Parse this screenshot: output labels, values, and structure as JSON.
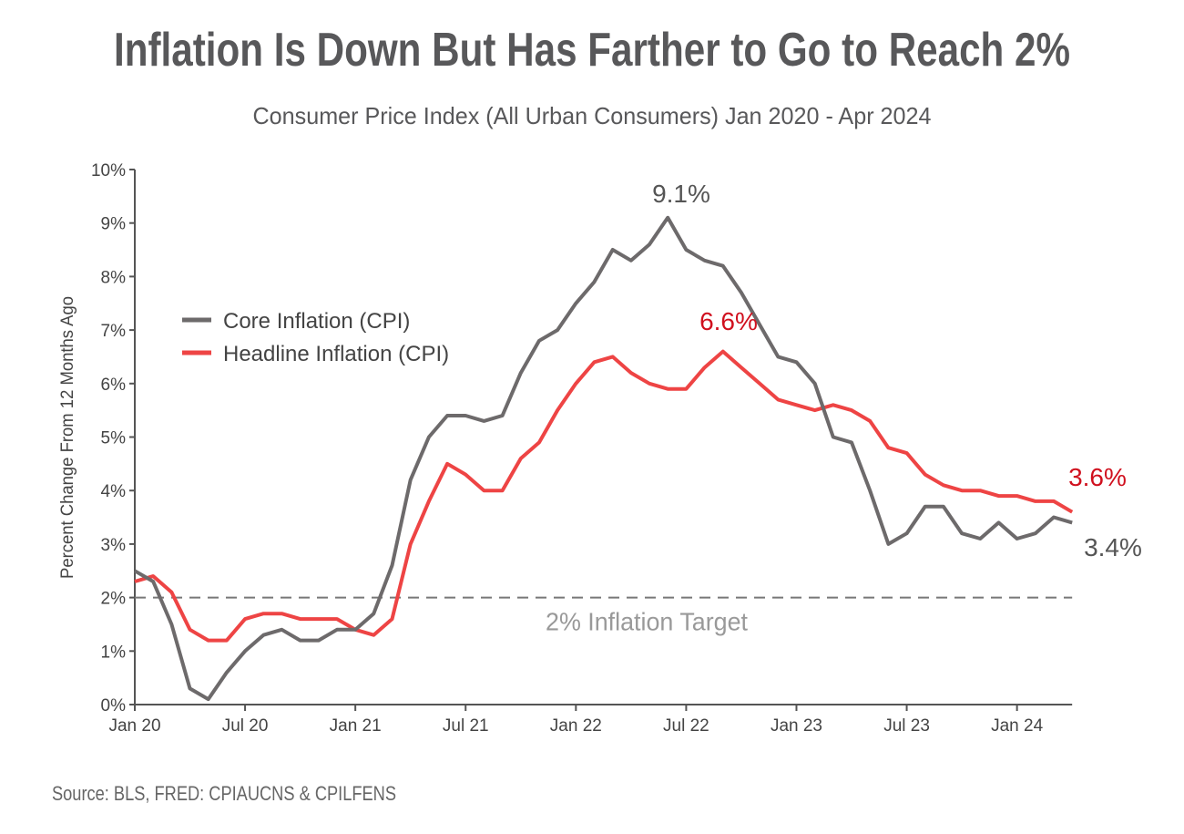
{
  "chart_data": {
    "type": "line",
    "title": "Inflation Is Down But Has Farther to Go to Reach 2%",
    "subtitle": "Consumer Price Index (All Urban Consumers) Jan 2020 - Apr 2024",
    "ylabel": "Percent Change From 12 Months Ago",
    "xlabel": "",
    "ylim": [
      0,
      10
    ],
    "yticks": [
      "0%",
      "1%",
      "2%",
      "3%",
      "4%",
      "5%",
      "6%",
      "7%",
      "8%",
      "9%",
      "10%"
    ],
    "xticks": [
      "Jan 20",
      "Jul 20",
      "Jan 21",
      "Jul 21",
      "Jan 22",
      "Jul 22",
      "Jan 23",
      "Jul 23",
      "Jan 24"
    ],
    "x_start": "Jan 2020",
    "x_end": "Apr 2024",
    "grid": false,
    "legend_position": "upper-left",
    "series": [
      {
        "name": "Core Inflation (CPI)",
        "color": "#6d6a6b",
        "values": [
          2.5,
          2.3,
          1.5,
          0.3,
          0.1,
          0.6,
          1.0,
          1.3,
          1.4,
          1.2,
          1.2,
          1.4,
          1.4,
          1.7,
          2.6,
          4.2,
          5.0,
          5.4,
          5.4,
          5.3,
          5.4,
          6.2,
          6.8,
          7.0,
          7.5,
          7.9,
          8.5,
          8.3,
          8.6,
          9.1,
          8.5,
          8.3,
          8.2,
          7.7,
          7.1,
          6.5,
          6.4,
          6.0,
          5.0,
          4.9,
          4.0,
          3.0,
          3.2,
          3.7,
          3.7,
          3.2,
          3.1,
          3.4,
          3.1,
          3.2,
          3.5,
          3.4
        ]
      },
      {
        "name": "Headline Inflation (CPI)",
        "color": "#ee4444",
        "values": [
          2.3,
          2.4,
          2.1,
          1.4,
          1.2,
          1.2,
          1.6,
          1.7,
          1.7,
          1.6,
          1.6,
          1.6,
          1.4,
          1.3,
          1.6,
          3.0,
          3.8,
          4.5,
          4.3,
          4.0,
          4.0,
          4.6,
          4.9,
          5.5,
          6.0,
          6.4,
          6.5,
          6.2,
          6.0,
          5.9,
          5.9,
          6.3,
          6.6,
          6.3,
          6.0,
          5.7,
          5.6,
          5.5,
          5.6,
          5.5,
          5.3,
          4.8,
          4.7,
          4.3,
          4.1,
          4.0,
          4.0,
          3.9,
          3.9,
          3.8,
          3.8,
          3.6
        ]
      }
    ],
    "reference_line": {
      "value": 2,
      "label": "2% Inflation Target",
      "color": "#888888"
    },
    "annotations": [
      {
        "text": "9.1%",
        "series": 0,
        "index": 29,
        "color": "#555555"
      },
      {
        "text": "6.6%",
        "series": 1,
        "index": 32,
        "color": "#d0101e"
      },
      {
        "text": "3.6%",
        "series": 1,
        "index": 51,
        "color": "#d0101e"
      },
      {
        "text": "3.4%",
        "series": 0,
        "index": 51,
        "color": "#555555"
      }
    ],
    "source": "Source: BLS, FRED: CPIAUCNS & CPILFENS"
  }
}
